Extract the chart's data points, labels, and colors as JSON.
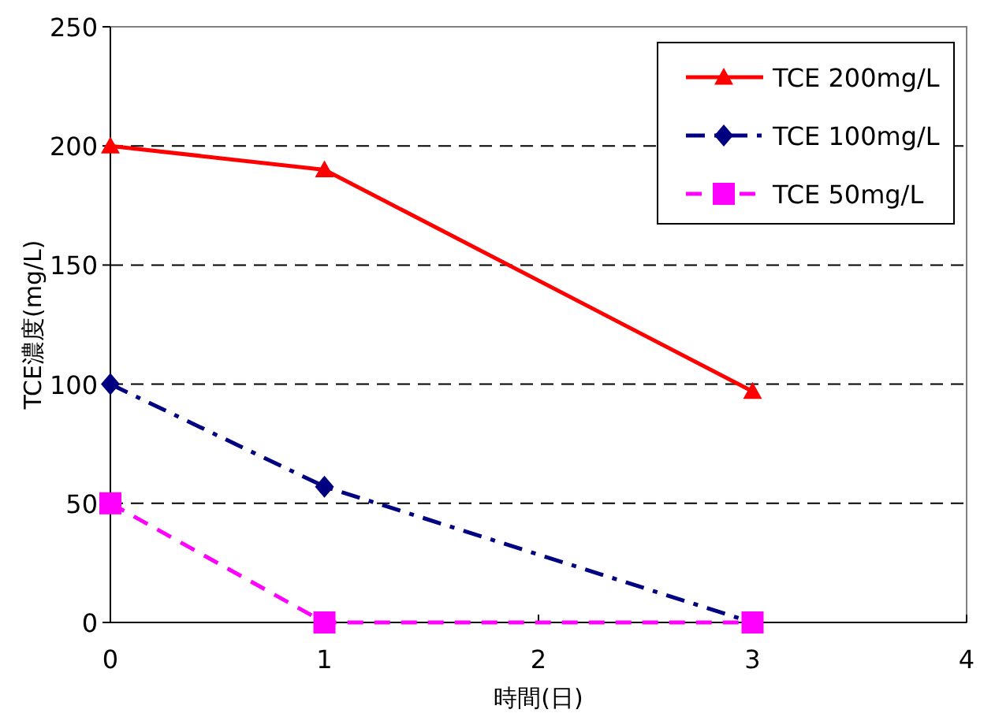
{
  "chart_data": {
    "type": "line",
    "xlabel": "時間(日)",
    "ylabel": "TCE濃度(mg/L)",
    "x": [
      0,
      1,
      3
    ],
    "xlim": [
      0,
      4
    ],
    "xticks": [
      0,
      1,
      2,
      3,
      4
    ],
    "ylim": [
      0,
      250
    ],
    "yticks": [
      0,
      50,
      100,
      150,
      200,
      250
    ],
    "grid": "y",
    "legend": "top right",
    "series": [
      {
        "name": "TCE 200mg/L",
        "color": "#ff0000",
        "values": [
          200,
          190,
          97
        ],
        "marker": "triangle",
        "line_style": "solid"
      },
      {
        "name": "TCE 100mg/L",
        "color": "#000080",
        "values": [
          100,
          57,
          0
        ],
        "marker": "diamond",
        "line_style": "dashdot"
      },
      {
        "name": "TCE 50mg/L",
        "color": "#ff00ff",
        "values": [
          50,
          0,
          0
        ],
        "marker": "square",
        "line_style": "dashed"
      }
    ]
  }
}
